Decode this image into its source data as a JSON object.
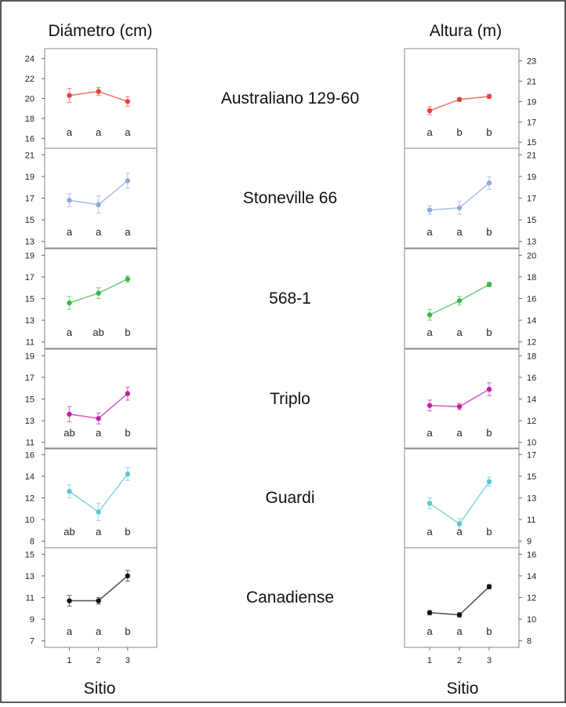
{
  "headers": {
    "left_title": "Diámetro (cm)",
    "right_title": "Altura (m)",
    "left_xlabel": "Sitio",
    "right_xlabel": "Sitio"
  },
  "x_ticks": [
    "1",
    "2",
    "3"
  ],
  "chart_data": {
    "type": "line",
    "x": [
      1,
      2,
      3
    ],
    "rows": [
      {
        "name": "Australiano 129-60",
        "color": "#e8413c",
        "diameter": {
          "yticks": [
            16,
            18,
            20,
            22,
            24
          ],
          "ylim": [
            15,
            25
          ],
          "values": [
            20.3,
            20.7,
            19.7
          ],
          "err": [
            0.7,
            0.4,
            0.5
          ],
          "letters": [
            "a",
            "a",
            "a"
          ]
        },
        "height": {
          "yticks": [
            15,
            17,
            19,
            21,
            23
          ],
          "ylim": [
            14.4,
            24.2
          ],
          "values": [
            18.1,
            19.2,
            19.5
          ],
          "err": [
            0.4,
            0.2,
            0.2
          ],
          "letters": [
            "a",
            "b",
            "b"
          ]
        }
      },
      {
        "name": "Stoneville 66",
        "color": "#8fa8dc",
        "diameter": {
          "yticks": [
            13,
            15,
            17,
            19,
            21
          ],
          "ylim": [
            12.4,
            21.6
          ],
          "values": [
            16.8,
            16.4,
            18.6
          ],
          "err": [
            0.6,
            0.8,
            0.7
          ],
          "letters": [
            "a",
            "a",
            "a"
          ]
        },
        "height": {
          "yticks": [
            13,
            15,
            17,
            19,
            21
          ],
          "ylim": [
            12.4,
            21.6
          ],
          "values": [
            15.9,
            16.1,
            18.4
          ],
          "err": [
            0.4,
            0.6,
            0.6
          ],
          "letters": [
            "a",
            "a",
            "b"
          ]
        }
      },
      {
        "name": "568-1",
        "color": "#3cb84a",
        "diameter": {
          "yticks": [
            11,
            13,
            15,
            17,
            19
          ],
          "ylim": [
            10.4,
            19.6
          ],
          "values": [
            14.6,
            15.5,
            16.8
          ],
          "err": [
            0.6,
            0.5,
            0.3
          ],
          "letters": [
            "a",
            "ab",
            "b"
          ]
        },
        "height": {
          "yticks": [
            12,
            14,
            16,
            18,
            20
          ],
          "ylim": [
            11.4,
            20.6
          ],
          "values": [
            14.5,
            15.8,
            17.3
          ],
          "err": [
            0.5,
            0.4,
            0.2
          ],
          "letters": [
            "a",
            "a",
            "b"
          ]
        }
      },
      {
        "name": "Triplo",
        "color": "#c020a8",
        "diameter": {
          "yticks": [
            11,
            13,
            15,
            17,
            19
          ],
          "ylim": [
            10.4,
            19.6
          ],
          "values": [
            13.6,
            13.2,
            15.5
          ],
          "err": [
            0.7,
            0.5,
            0.6
          ],
          "letters": [
            "ab",
            "a",
            "b"
          ]
        },
        "height": {
          "yticks": [
            10,
            12,
            14,
            16,
            18
          ],
          "ylim": [
            9.4,
            18.6
          ],
          "values": [
            13.4,
            13.3,
            14.9
          ],
          "err": [
            0.5,
            0.3,
            0.6
          ],
          "letters": [
            "a",
            "a",
            "b"
          ]
        }
      },
      {
        "name": "Guardi",
        "color": "#58c8d0",
        "diameter": {
          "yticks": [
            8,
            10,
            12,
            14,
            16
          ],
          "ylim": [
            7.4,
            16.6
          ],
          "values": [
            12.6,
            10.7,
            14.2
          ],
          "err": [
            0.6,
            0.8,
            0.6
          ],
          "letters": [
            "ab",
            "a",
            "b"
          ]
        },
        "height": {
          "yticks": [
            9,
            11,
            13,
            15,
            17
          ],
          "ylim": [
            8.4,
            17.6
          ],
          "values": [
            12.5,
            10.6,
            14.5
          ],
          "err": [
            0.5,
            0.5,
            0.4
          ],
          "letters": [
            "a",
            "a",
            "b"
          ]
        }
      },
      {
        "name": "Canadiense",
        "color": "#111111",
        "diameter": {
          "yticks": [
            7,
            9,
            11,
            13,
            15
          ],
          "ylim": [
            6.4,
            15.6
          ],
          "values": [
            10.7,
            10.7,
            13.0
          ],
          "err": [
            0.5,
            0.3,
            0.5
          ],
          "letters": [
            "a",
            "a",
            "b"
          ]
        },
        "height": {
          "yticks": [
            8,
            10,
            12,
            14,
            16
          ],
          "ylim": [
            7.4,
            16.6
          ],
          "values": [
            10.6,
            10.4,
            13.0
          ],
          "err": [
            0.2,
            0.2,
            0.2
          ],
          "letters": [
            "a",
            "a",
            "b"
          ]
        }
      }
    ]
  }
}
